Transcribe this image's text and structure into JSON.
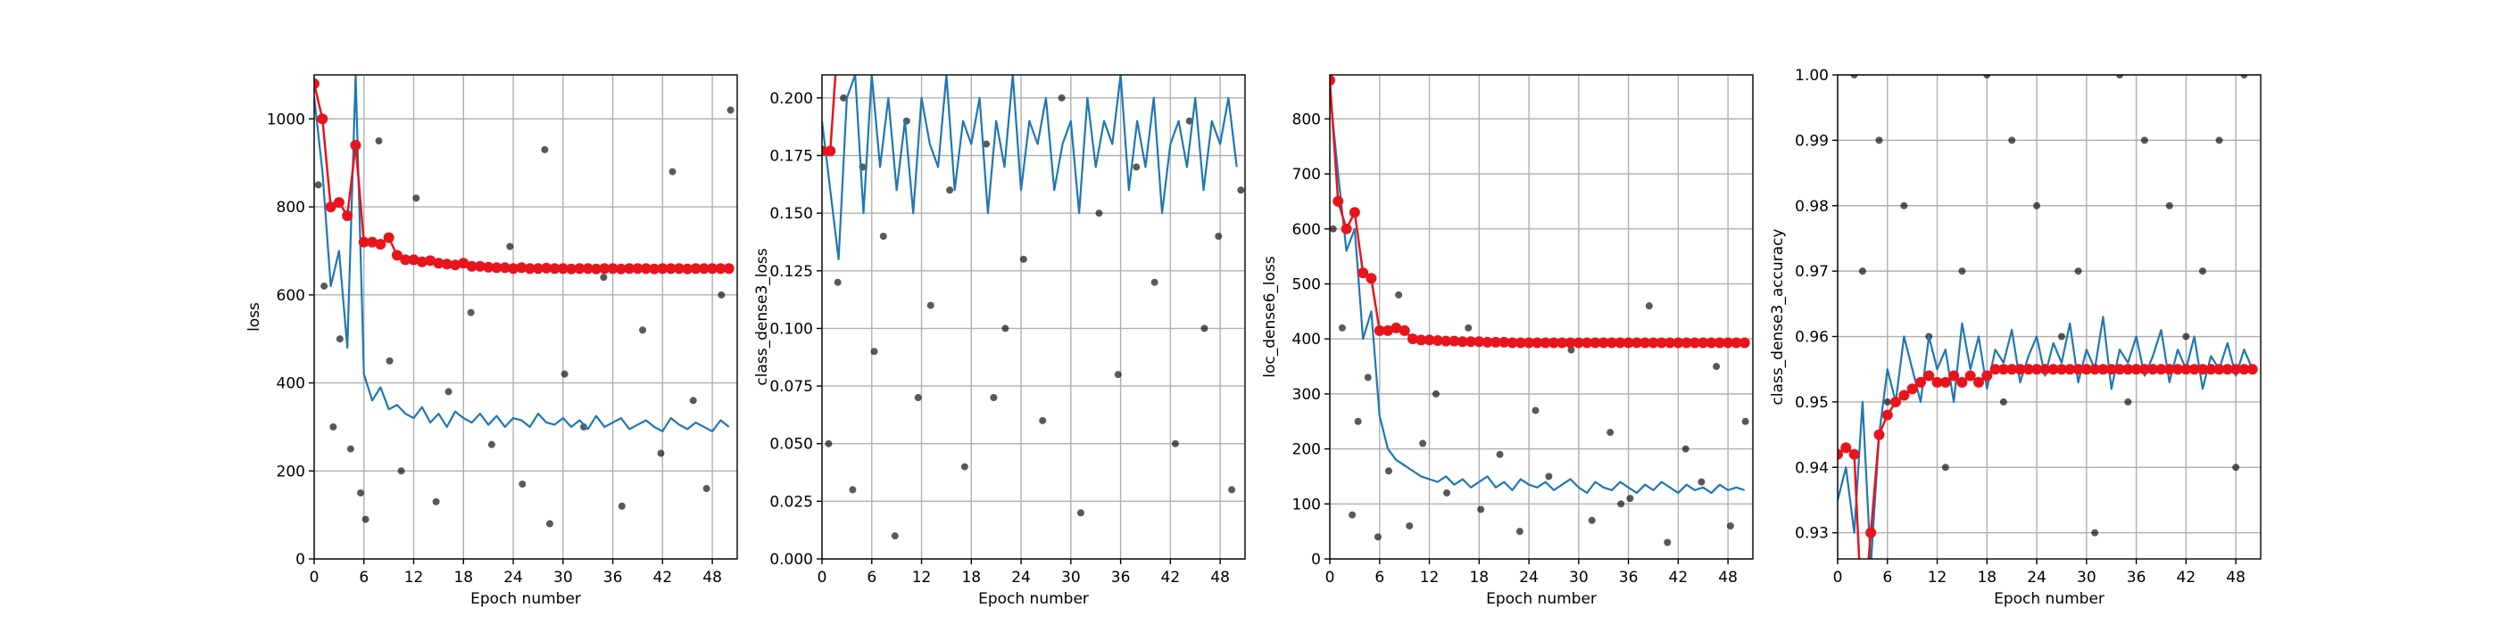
{
  "chart_data": [
    {
      "type": "line",
      "xlabel": "Epoch number",
      "ylabel": "loss",
      "grid": true,
      "xlim": [
        0,
        51
      ],
      "xticks": [
        0,
        6,
        12,
        18,
        24,
        30,
        36,
        42,
        48
      ],
      "ylim": [
        0,
        1100
      ],
      "yticks": [
        0,
        200,
        400,
        600,
        800,
        1000
      ],
      "x": [
        0,
        1,
        2,
        3,
        4,
        5,
        6,
        7,
        8,
        9,
        10,
        11,
        12,
        13,
        14,
        15,
        16,
        17,
        18,
        19,
        20,
        21,
        22,
        23,
        24,
        25,
        26,
        27,
        28,
        29,
        30,
        31,
        32,
        33,
        34,
        35,
        36,
        37,
        38,
        39,
        40,
        41,
        42,
        43,
        44,
        45,
        46,
        47,
        48,
        49,
        50
      ],
      "points": {
        "color": "#000000",
        "x": [
          0.5,
          1.2,
          2.3,
          3.1,
          4.4,
          5.6,
          6.2,
          7.8,
          9.1,
          10.5,
          12.3,
          14.7,
          16.2,
          18.9,
          21.4,
          23.6,
          25.1,
          27.8,
          30.2,
          32.5,
          34.9,
          37.1,
          39.6,
          41.8,
          43.2,
          45.7,
          47.3,
          49.1,
          50.2,
          28.4
        ],
        "y": [
          850,
          620,
          300,
          500,
          250,
          150,
          90,
          950,
          450,
          200,
          820,
          130,
          380,
          560,
          260,
          710,
          170,
          930,
          420,
          300,
          640,
          120,
          520,
          240,
          880,
          360,
          160,
          600,
          1020,
          80
        ]
      },
      "series": [
        {
          "color": "#1f77b4",
          "values": [
            1050,
            880,
            620,
            700,
            480,
            1100,
            420,
            360,
            390,
            340,
            350,
            330,
            320,
            345,
            310,
            330,
            300,
            335,
            320,
            310,
            330,
            305,
            325,
            300,
            320,
            315,
            300,
            330,
            310,
            305,
            320,
            300,
            315,
            295,
            325,
            300,
            310,
            320,
            295,
            305,
            315,
            300,
            290,
            320,
            305,
            295,
            310,
            300,
            290,
            315,
            300
          ]
        },
        {
          "color": "#e8141c",
          "marker": true,
          "values": [
            1080,
            1000,
            800,
            810,
            780,
            940,
            720,
            720,
            715,
            730,
            690,
            680,
            680,
            675,
            678,
            672,
            670,
            668,
            672,
            665,
            665,
            663,
            662,
            662,
            660,
            662,
            660,
            660,
            661,
            660,
            660,
            659,
            660,
            660,
            659,
            660,
            660,
            659,
            660,
            660,
            660,
            659,
            660,
            660,
            660,
            659,
            660,
            660,
            660,
            660,
            660
          ]
        }
      ]
    },
    {
      "type": "line",
      "xlabel": "Epoch number",
      "ylabel": "class_dense3_loss",
      "grid": true,
      "xlim": [
        0,
        51
      ],
      "xticks": [
        0,
        6,
        12,
        18,
        24,
        30,
        36,
        42,
        48
      ],
      "ylim": [
        0,
        0.21
      ],
      "yticks": [
        {
          "value": 0,
          "label": "0.000"
        },
        {
          "value": 0.025,
          "label": "0.025"
        },
        {
          "value": 0.05,
          "label": "0.050"
        },
        {
          "value": 0.075,
          "label": "0.075"
        },
        {
          "value": 0.1,
          "label": "0.100"
        },
        {
          "value": 0.125,
          "label": "0.125"
        },
        {
          "value": 0.15,
          "label": "0.150"
        },
        {
          "value": 0.175,
          "label": "0.175"
        },
        {
          "value": 0.2,
          "label": "0.200"
        }
      ],
      "x": [
        0,
        1,
        2,
        3,
        4,
        5,
        6,
        7,
        8,
        9,
        10,
        11,
        12,
        13,
        14,
        15,
        16,
        17,
        18,
        19,
        20,
        21,
        22,
        23,
        24,
        25,
        26,
        27,
        28,
        29,
        30,
        31,
        32,
        33,
        34,
        35,
        36,
        37,
        38,
        39,
        40,
        41,
        42,
        43,
        44,
        45,
        46,
        47,
        48,
        49,
        50
      ],
      "points": {
        "color": "#000000",
        "x": [
          0.8,
          1.9,
          2.6,
          3.7,
          4.9,
          6.3,
          7.4,
          8.8,
          10.2,
          11.6,
          13.1,
          15.4,
          17.2,
          19.8,
          22.1,
          24.3,
          26.6,
          28.9,
          31.2,
          33.4,
          35.7,
          37.9,
          40.1,
          42.6,
          44.3,
          46.1,
          47.8,
          49.4,
          50.5,
          20.7
        ],
        "y": [
          0.05,
          0.12,
          0.2,
          0.03,
          0.17,
          0.09,
          0.14,
          0.01,
          0.19,
          0.07,
          0.11,
          0.16,
          0.04,
          0.18,
          0.1,
          0.13,
          0.06,
          0.2,
          0.02,
          0.15,
          0.08,
          0.17,
          0.12,
          0.05,
          0.19,
          0.1,
          0.14,
          0.03,
          0.16,
          0.07
        ]
      },
      "series": [
        {
          "color": "#1f77b4",
          "values": [
            0.19,
            0.16,
            0.13,
            0.2,
            0.21,
            0.15,
            0.21,
            0.17,
            0.2,
            0.16,
            0.19,
            0.15,
            0.2,
            0.18,
            0.17,
            0.21,
            0.16,
            0.19,
            0.18,
            0.2,
            0.15,
            0.19,
            0.17,
            0.21,
            0.16,
            0.19,
            0.18,
            0.2,
            0.16,
            0.18,
            0.19,
            0.15,
            0.2,
            0.17,
            0.19,
            0.18,
            0.21,
            0.16,
            0.19,
            0.17,
            0.2,
            0.15,
            0.18,
            0.19,
            0.17,
            0.2,
            0.16,
            0.19,
            0.18,
            0.2,
            0.17
          ]
        },
        {
          "color": "#e8141c",
          "marker": true,
          "values": [
            0.177,
            0.177,
            0.23,
            null,
            null,
            null,
            null,
            null,
            null,
            null,
            null,
            null,
            null,
            null,
            null,
            null,
            null,
            null,
            null,
            null,
            null,
            null,
            null,
            null,
            null,
            null,
            null,
            null,
            null,
            null,
            null,
            null,
            null,
            null,
            null,
            null,
            null,
            null,
            null,
            null,
            null,
            null,
            null,
            null,
            null,
            null,
            null,
            null,
            null,
            null,
            null
          ]
        }
      ]
    },
    {
      "type": "line",
      "xlabel": "Epoch number",
      "ylabel": "loc_dense6_loss",
      "grid": true,
      "xlim": [
        0,
        51
      ],
      "xticks": [
        0,
        6,
        12,
        18,
        24,
        30,
        36,
        42,
        48
      ],
      "ylim": [
        0,
        880
      ],
      "yticks": [
        0,
        100,
        200,
        300,
        400,
        500,
        600,
        700,
        800
      ],
      "x": [
        0,
        1,
        2,
        3,
        4,
        5,
        6,
        7,
        8,
        9,
        10,
        11,
        12,
        13,
        14,
        15,
        16,
        17,
        18,
        19,
        20,
        21,
        22,
        23,
        24,
        25,
        26,
        27,
        28,
        29,
        30,
        31,
        32,
        33,
        34,
        35,
        36,
        37,
        38,
        39,
        40,
        41,
        42,
        43,
        44,
        45,
        46,
        47,
        48,
        49,
        50
      ],
      "points": {
        "color": "#000000",
        "x": [
          0.4,
          1.5,
          2.7,
          3.4,
          4.6,
          5.8,
          7.1,
          8.3,
          9.6,
          11.2,
          12.8,
          14.1,
          16.7,
          18.2,
          20.5,
          22.9,
          24.8,
          26.4,
          29.1,
          31.6,
          33.8,
          36.2,
          38.5,
          40.7,
          42.9,
          44.8,
          46.6,
          48.3,
          50.1,
          35.1
        ],
        "y": [
          600,
          420,
          80,
          250,
          330,
          40,
          160,
          480,
          60,
          210,
          300,
          120,
          420,
          90,
          190,
          50,
          270,
          150,
          380,
          70,
          230,
          110,
          460,
          30,
          200,
          140,
          350,
          60,
          250,
          100
        ]
      },
      "series": [
        {
          "color": "#1f77b4",
          "values": [
            850,
            700,
            560,
            600,
            400,
            450,
            260,
            200,
            180,
            170,
            160,
            150,
            145,
            140,
            150,
            135,
            145,
            130,
            140,
            150,
            130,
            140,
            125,
            145,
            135,
            130,
            140,
            125,
            135,
            145,
            130,
            120,
            140,
            130,
            125,
            140,
            130,
            120,
            135,
            125,
            140,
            130,
            120,
            135,
            125,
            130,
            120,
            135,
            125,
            130,
            125
          ]
        },
        {
          "color": "#e8141c",
          "marker": true,
          "values": [
            870,
            650,
            600,
            630,
            520,
            510,
            415,
            415,
            420,
            415,
            400,
            398,
            398,
            397,
            396,
            396,
            395,
            395,
            395,
            394,
            394,
            394,
            393,
            393,
            393,
            393,
            393,
            393,
            393,
            393,
            393,
            393,
            393,
            393,
            393,
            393,
            393,
            393,
            393,
            393,
            393,
            393,
            393,
            393,
            393,
            393,
            393,
            393,
            393,
            393,
            393
          ]
        }
      ]
    },
    {
      "type": "line",
      "xlabel": "Epoch number",
      "ylabel": "class_dense3_accuracy",
      "grid": true,
      "xlim": [
        0,
        51
      ],
      "xticks": [
        0,
        6,
        12,
        18,
        24,
        30,
        36,
        42,
        48
      ],
      "ylim": [
        0.926,
        1.0
      ],
      "yticks": [
        0.93,
        0.94,
        0.95,
        0.96,
        0.97,
        0.98,
        0.99,
        {
          "value": 1.0,
          "label": "1.00"
        }
      ],
      "x": [
        0,
        1,
        2,
        3,
        4,
        5,
        6,
        7,
        8,
        9,
        10,
        11,
        12,
        13,
        14,
        15,
        16,
        17,
        18,
        19,
        20,
        21,
        22,
        23,
        24,
        25,
        26,
        27,
        28,
        29,
        30,
        31,
        32,
        33,
        34,
        35,
        36,
        37,
        38,
        39,
        40,
        41,
        42,
        43,
        44,
        45,
        46,
        47,
        48,
        49,
        50
      ],
      "points": {
        "color": "#000000",
        "x": [
          2,
          18,
          34,
          49,
          5,
          21,
          37,
          46,
          8,
          24,
          40,
          3,
          15,
          29,
          44,
          11,
          27,
          42,
          6,
          20,
          35,
          48,
          13,
          31
        ],
        "y": [
          1.0,
          1.0,
          1.0,
          1.0,
          0.99,
          0.99,
          0.99,
          0.99,
          0.98,
          0.98,
          0.98,
          0.97,
          0.97,
          0.97,
          0.97,
          0.96,
          0.96,
          0.96,
          0.95,
          0.95,
          0.95,
          0.94,
          0.94,
          0.93
        ]
      },
      "series": [
        {
          "color": "#1f77b4",
          "values": [
            0.935,
            0.94,
            0.93,
            0.95,
            0.925,
            0.945,
            0.955,
            0.95,
            0.96,
            0.955,
            0.95,
            0.96,
            0.955,
            0.958,
            0.95,
            0.962,
            0.955,
            0.96,
            0.952,
            0.958,
            0.956,
            0.961,
            0.953,
            0.957,
            0.96,
            0.954,
            0.959,
            0.956,
            0.962,
            0.953,
            0.958,
            0.955,
            0.963,
            0.952,
            0.958,
            0.956,
            0.96,
            0.954,
            0.957,
            0.961,
            0.953,
            0.958,
            0.955,
            0.96,
            0.952,
            0.957,
            0.955,
            0.959,
            0.954,
            0.958,
            0.955
          ]
        },
        {
          "color": "#e8141c",
          "marker": true,
          "values": [
            0.942,
            0.943,
            0.942,
            0.915,
            0.93,
            0.945,
            0.948,
            0.95,
            0.951,
            0.952,
            0.953,
            0.954,
            0.953,
            0.953,
            0.954,
            0.953,
            0.954,
            0.953,
            0.954,
            0.955,
            0.955,
            0.955,
            0.955,
            0.955,
            0.955,
            0.955,
            0.955,
            0.955,
            0.955,
            0.955,
            0.955,
            0.955,
            0.955,
            0.955,
            0.955,
            0.955,
            0.955,
            0.955,
            0.955,
            0.955,
            0.955,
            0.955,
            0.955,
            0.955,
            0.955,
            0.955,
            0.955,
            0.955,
            0.955,
            0.955,
            0.955
          ]
        }
      ]
    }
  ]
}
